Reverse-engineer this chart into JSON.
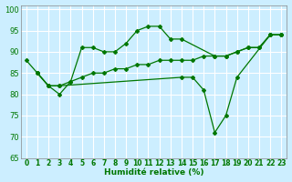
{
  "xlabel": "Humidité relative (%)",
  "bg_color": "#cceeff",
  "grid_color": "#ffffff",
  "line_color": "#007700",
  "xlim": [
    -0.5,
    23.5
  ],
  "ylim": [
    65,
    101
  ],
  "xticks": [
    0,
    1,
    2,
    3,
    4,
    5,
    6,
    7,
    8,
    9,
    10,
    11,
    12,
    13,
    14,
    15,
    16,
    17,
    18,
    19,
    20,
    21,
    22,
    23
  ],
  "yticks": [
    65,
    70,
    75,
    80,
    85,
    90,
    95,
    100
  ],
  "lines": [
    {
      "x": [
        0,
        1,
        2,
        3,
        4,
        5,
        6,
        7,
        8,
        9,
        10,
        11,
        12,
        13,
        14,
        17,
        18,
        19,
        20,
        21,
        22,
        23
      ],
      "y": [
        88,
        85,
        82,
        80,
        83,
        91,
        91,
        90,
        90,
        92,
        95,
        96,
        96,
        93,
        93,
        89,
        89,
        90,
        91,
        91,
        94,
        94
      ]
    },
    {
      "x": [
        1,
        2,
        3,
        4,
        5,
        6,
        7,
        8,
        9,
        10,
        11,
        12,
        13,
        14,
        15,
        16,
        17,
        18,
        19,
        20,
        21,
        22,
        23
      ],
      "y": [
        85,
        82,
        82,
        83,
        84,
        85,
        85,
        86,
        86,
        87,
        87,
        88,
        88,
        88,
        88,
        89,
        89,
        89,
        90,
        91,
        91,
        94,
        94
      ]
    },
    {
      "x": [
        1,
        2,
        3,
        14,
        15,
        16,
        17,
        18,
        19,
        22,
        23
      ],
      "y": [
        85,
        82,
        82,
        84,
        84,
        81,
        71,
        75,
        84,
        94,
        94
      ]
    }
  ]
}
